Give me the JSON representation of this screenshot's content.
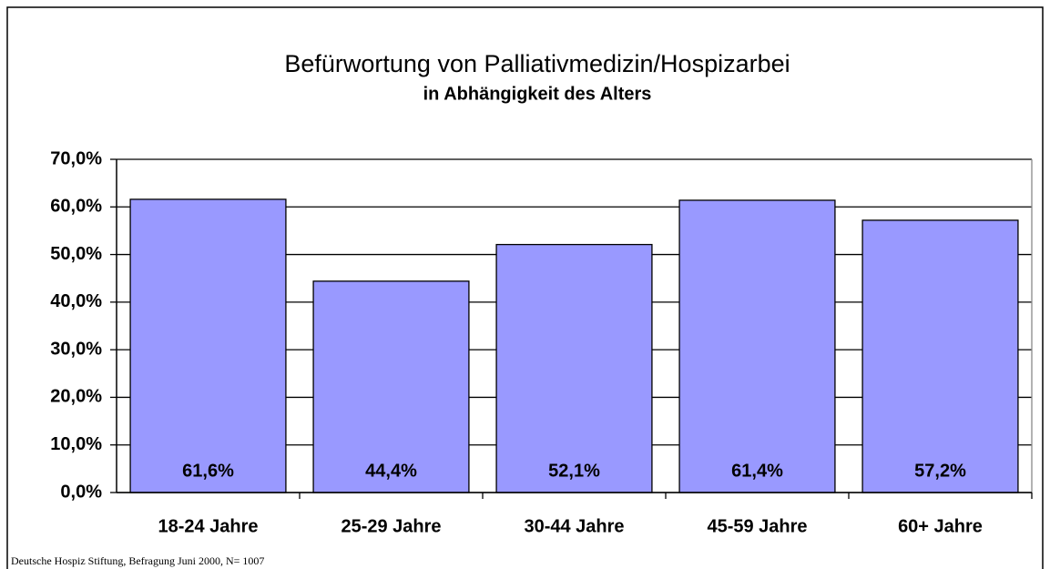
{
  "chart_data": {
    "type": "bar",
    "title": "Befürwortung von Palliativmedizin/Hospizarbei",
    "subtitle": "in Abhängigkeit des Alters",
    "note": "Deutsche Hospiz Stiftung, Befragung Juni 2000, N= 1007",
    "categories": [
      "18-24 Jahre",
      "25-29 Jahre",
      "30-44 Jahre",
      "45-59 Jahre",
      "60+ Jahre"
    ],
    "values": [
      61.6,
      44.4,
      52.1,
      61.4,
      57.2
    ],
    "value_labels": [
      "61,6%",
      "44,4%",
      "52,1%",
      "61,4%",
      "57,2%"
    ],
    "color": "#9999ff",
    "ylim": [
      0,
      70
    ],
    "yticks": [
      {
        "value": 0,
        "label": "0,0%"
      },
      {
        "value": 10,
        "label": "10,0%"
      },
      {
        "value": 20,
        "label": "20,0%"
      },
      {
        "value": 30,
        "label": "30,0%"
      },
      {
        "value": 40,
        "label": "40,0%"
      },
      {
        "value": 50,
        "label": "50,0%"
      },
      {
        "value": 60,
        "label": "60,0%"
      },
      {
        "value": 70,
        "label": "70,0%"
      }
    ],
    "grid": true
  }
}
